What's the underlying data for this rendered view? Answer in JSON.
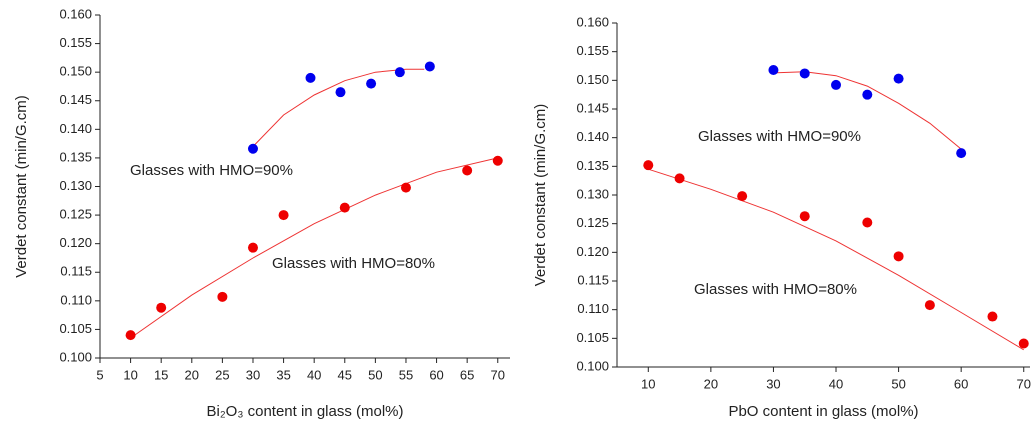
{
  "chart_data": [
    {
      "type": "scatter",
      "x_label": "Bi₂O₃ content in glass (mol%)",
      "y_label": "Verdet constant (min/G.cm)",
      "annotations": [
        "Glasses with HMO=90%",
        "Glasses with HMO=80%"
      ],
      "xlim": [
        5,
        72
      ],
      "ylim": [
        0.1,
        0.16
      ],
      "xticks": [
        5,
        10,
        15,
        20,
        25,
        30,
        35,
        40,
        45,
        50,
        55,
        60,
        65,
        70
      ],
      "yticks": [
        {
          "value": 0.1,
          "label": "0.100"
        },
        0.105,
        {
          "value": 0.11,
          "label": "0.110"
        },
        0.115,
        {
          "value": 0.12,
          "label": "0.120"
        },
        0.125,
        {
          "value": 0.13,
          "label": "0.130"
        },
        0.135,
        {
          "value": 0.14,
          "label": "0.140"
        },
        0.145,
        {
          "value": 0.15,
          "label": "0.150"
        },
        0.155,
        {
          "value": 0.16,
          "label": "0.160"
        }
      ],
      "series": [
        {
          "mode": "markers",
          "color": "#0000ee",
          "x": [
            30,
            39.4,
            44.3,
            49.3,
            54,
            58.9
          ],
          "values": [
            0.1366,
            0.149,
            0.1465,
            0.148,
            0.15,
            0.151
          ]
        },
        {
          "mode": "markers",
          "color": "#ee0000",
          "x": [
            10,
            15,
            25,
            30,
            35,
            45,
            55,
            65,
            70
          ],
          "values": [
            0.104,
            0.1088,
            0.1107,
            0.1193,
            0.125,
            0.1263,
            0.1298,
            0.1328,
            0.1345
          ]
        },
        {
          "mode": "line",
          "color": "#ee3333",
          "x": [
            30,
            35,
            40,
            45,
            50,
            55,
            58
          ],
          "values": [
            0.137,
            0.1425,
            0.146,
            0.1485,
            0.15,
            0.1505,
            0.1505
          ]
        },
        {
          "mode": "line",
          "color": "#ee3333",
          "x": [
            10,
            20,
            30,
            40,
            50,
            60,
            70
          ],
          "values": [
            0.1035,
            0.111,
            0.1175,
            0.1235,
            0.1285,
            0.1325,
            0.135
          ]
        }
      ]
    },
    {
      "type": "scatter",
      "x_label": "PbO content in glass (mol%)",
      "y_label": "Verdet constant (min/G.cm)",
      "annotations": [
        "Glasses with HMO=90%",
        "Glasses with HMO=80%"
      ],
      "xlim": [
        5,
        71
      ],
      "ylim": [
        0.1,
        0.16
      ],
      "xticks": [
        10,
        20,
        30,
        40,
        50,
        60,
        70
      ],
      "yticks": [
        {
          "value": 0.1,
          "label": "0.100"
        },
        0.105,
        {
          "value": 0.11,
          "label": "0.110"
        },
        0.115,
        {
          "value": 0.12,
          "label": "0.120"
        },
        0.125,
        {
          "value": 0.13,
          "label": "0.130"
        },
        0.135,
        {
          "value": 0.14,
          "label": "0.140"
        },
        0.145,
        {
          "value": 0.15,
          "label": "0.150"
        },
        0.155,
        {
          "value": 0.16,
          "label": "0.160"
        }
      ],
      "series": [
        {
          "mode": "markers",
          "color": "#0000ee",
          "x": [
            30,
            35,
            40,
            45,
            50,
            60
          ],
          "values": [
            0.1518,
            0.1512,
            0.1492,
            0.1475,
            0.1503,
            0.1373
          ]
        },
        {
          "mode": "markers",
          "color": "#ee0000",
          "x": [
            10,
            15,
            25,
            35,
            45,
            50,
            55,
            65,
            70
          ],
          "values": [
            0.1352,
            0.1329,
            0.1298,
            0.1263,
            0.1252,
            0.1193,
            0.1108,
            0.1088,
            0.1041
          ]
        },
        {
          "mode": "line",
          "color": "#ee3333",
          "x": [
            30,
            35,
            40,
            45,
            50,
            55,
            60
          ],
          "values": [
            0.1513,
            0.1515,
            0.1508,
            0.149,
            0.146,
            0.1425,
            0.138
          ]
        },
        {
          "mode": "line",
          "color": "#ee3333",
          "x": [
            10,
            20,
            30,
            40,
            50,
            60,
            70
          ],
          "values": [
            0.1345,
            0.131,
            0.127,
            0.122,
            0.116,
            0.1095,
            0.103
          ]
        }
      ]
    }
  ]
}
